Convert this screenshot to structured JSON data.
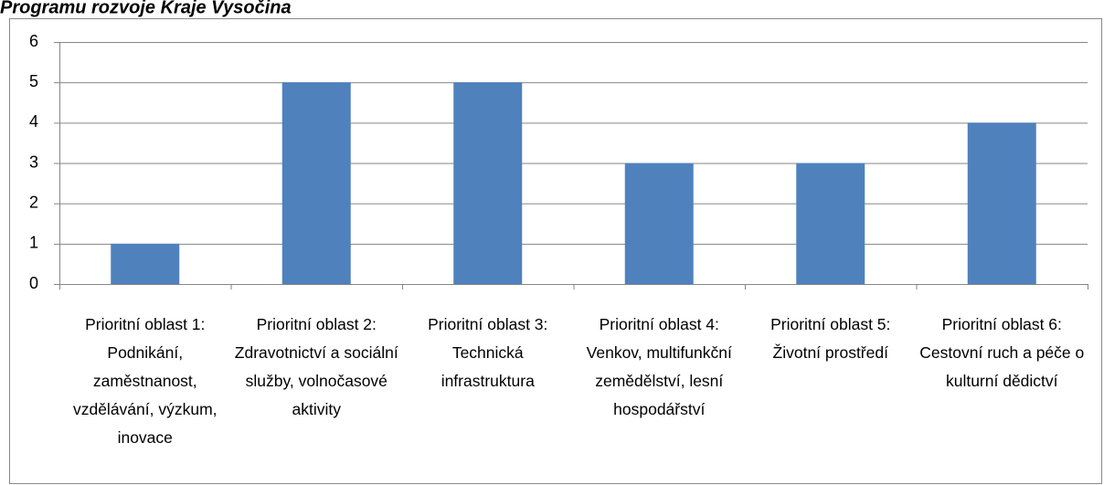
{
  "chart_data": {
    "type": "bar",
    "title": "Programu rozvoje Kraje Vysočina",
    "categories": [
      "Prioritní oblast 1: Podnikání, zaměstnanost, vzdělávání, výzkum, inovace",
      "Prioritní oblast 2: Zdravotnictví a sociální služby, volnočasové aktivity",
      "Prioritní oblast 3: Technická infrastruktura",
      "Prioritní oblast 4: Venkov, multifunkční zemědělství, lesní hospodářství",
      "Prioritní oblast 5: Životní prostředí",
      "Prioritní oblast 6: Cestovní ruch a péče o kulturní dědictví"
    ],
    "values": [
      1,
      5,
      5,
      3,
      3,
      4
    ],
    "color": "#4f81bd",
    "ylim": [
      0,
      6
    ],
    "yticks": [
      0,
      1,
      2,
      3,
      4,
      5,
      6
    ],
    "grid": true
  }
}
